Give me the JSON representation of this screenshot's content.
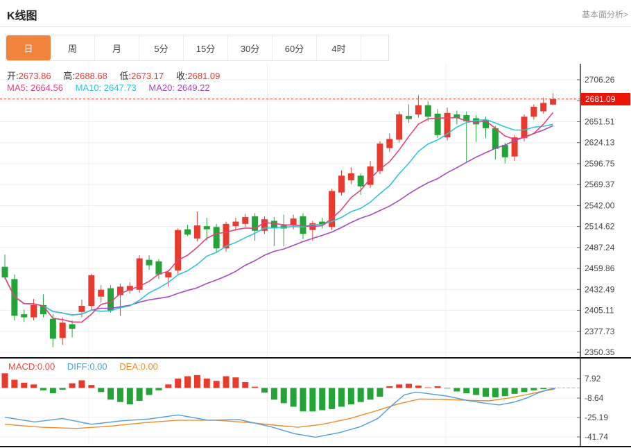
{
  "header": {
    "title": "K线图",
    "link": "基本面分析>"
  },
  "tabs": [
    {
      "label": "日",
      "active": true
    },
    {
      "label": "周",
      "active": false
    },
    {
      "label": "月",
      "active": false
    },
    {
      "label": "5分",
      "active": false
    },
    {
      "label": "15分",
      "active": false
    },
    {
      "label": "30分",
      "active": false
    },
    {
      "label": "60分",
      "active": false
    },
    {
      "label": "4时",
      "active": false
    }
  ],
  "info": {
    "open_label": "开:",
    "open": "2673.86",
    "high_label": "高:",
    "high": "2688.68",
    "low_label": "低:",
    "low": "2673.17",
    "close_label": "收:",
    "close": "2681.09"
  },
  "ma": {
    "ma5_label": "MA5:",
    "ma5": "2664.56",
    "ma10_label": "MA10:",
    "ma10": "2647.73",
    "ma20_label": "MA20:",
    "ma20": "2649.22"
  },
  "macd_info": {
    "macd_label": "MACD:",
    "macd": "0.00",
    "diff_label": "DIFF:",
    "diff": "0.00",
    "dea_label": "DEA:",
    "dea": "0.00"
  },
  "current_price": "2681.09",
  "colors": {
    "up": "#e83b2d",
    "down": "#23a338",
    "ma5": "#e8417c",
    "ma10": "#2fc3dc",
    "ma20": "#a44bbe",
    "diff": "#4f9be0",
    "dea": "#ef8b2a",
    "badge": "#ec1407",
    "dashed_price": "#e63c30",
    "dashed_zero": "#8ac4ee",
    "grid": "#ececec",
    "axis": "#444",
    "tab_active": "#f0843c"
  },
  "chart_data": [
    {
      "type": "candlestick",
      "title": "K线图 daily candles with MA5/MA10/MA20 overlays",
      "legend": [
        "MA5",
        "MA10",
        "MA20"
      ],
      "ma_periods": [
        5,
        10,
        20
      ],
      "current_price": 2681.09,
      "y_ticks": [
        2706.26,
        2678.88,
        2651.51,
        2624.13,
        2596.75,
        2569.37,
        2542.0,
        2514.62,
        2487.24,
        2459.86,
        2432.49,
        2405.11,
        2377.73,
        2350.35
      ],
      "y_tick_labels": [
        "2706.26",
        "2651.51",
        "2624.13",
        "2596.75",
        "2569.37",
        "2542.00",
        "2514.62",
        "2487.24",
        "2459.86",
        "2432.49",
        "2405.11",
        "2377.73",
        "2350.35"
      ],
      "hidden_tick": 2678.88,
      "ylim": [
        2340,
        2712
      ],
      "grid": true,
      "candles_ohlc": [
        [
          2462,
          2478,
          2446,
          2448
        ],
        [
          2446,
          2452,
          2392,
          2398
        ],
        [
          2400,
          2406,
          2390,
          2396
        ],
        [
          2396,
          2420,
          2392,
          2412
        ],
        [
          2412,
          2426,
          2396,
          2400
        ],
        [
          2394,
          2400,
          2357,
          2368
        ],
        [
          2369,
          2396,
          2360,
          2389
        ],
        [
          2387,
          2392,
          2370,
          2381
        ],
        [
          2403,
          2419,
          2396,
          2411
        ],
        [
          2411,
          2453,
          2405,
          2451
        ],
        [
          2423,
          2438,
          2416,
          2432
        ],
        [
          2434,
          2438,
          2402,
          2405
        ],
        [
          2425,
          2440,
          2398,
          2436
        ],
        [
          2431,
          2442,
          2427,
          2437
        ],
        [
          2432,
          2477,
          2428,
          2473
        ],
        [
          2471,
          2477,
          2458,
          2464
        ],
        [
          2469,
          2472,
          2446,
          2452
        ],
        [
          2448,
          2458,
          2436,
          2455
        ],
        [
          2457,
          2512,
          2452,
          2510
        ],
        [
          2511,
          2517,
          2502,
          2504
        ],
        [
          2499,
          2534,
          2495,
          2516
        ],
        [
          2515,
          2526,
          2496,
          2511
        ],
        [
          2514,
          2518,
          2480,
          2486
        ],
        [
          2486,
          2521,
          2482,
          2518
        ],
        [
          2515,
          2526,
          2509,
          2521
        ],
        [
          2518,
          2531,
          2514,
          2527
        ],
        [
          2528,
          2532,
          2496,
          2509
        ],
        [
          2509,
          2528,
          2505,
          2524
        ],
        [
          2522,
          2527,
          2489,
          2512
        ],
        [
          2516,
          2530,
          2489,
          2512
        ],
        [
          2516,
          2530,
          2511,
          2525
        ],
        [
          2528,
          2532,
          2498,
          2505
        ],
        [
          2510,
          2522,
          2496,
          2519
        ],
        [
          2521,
          2526,
          2512,
          2517
        ],
        [
          2514,
          2564,
          2510,
          2561
        ],
        [
          2559,
          2588,
          2555,
          2581
        ],
        [
          2575,
          2592,
          2570,
          2584
        ],
        [
          2581,
          2584,
          2556,
          2567
        ],
        [
          2569,
          2600,
          2565,
          2593
        ],
        [
          2587,
          2626,
          2583,
          2623
        ],
        [
          2617,
          2636,
          2612,
          2629
        ],
        [
          2628,
          2665,
          2624,
          2661
        ],
        [
          2659,
          2674,
          2650,
          2655
        ],
        [
          2661,
          2686,
          2657,
          2673
        ],
        [
          2673,
          2678,
          2652,
          2658
        ],
        [
          2662,
          2668,
          2630,
          2634
        ],
        [
          2631,
          2670,
          2627,
          2663
        ],
        [
          2661,
          2666,
          2648,
          2656
        ],
        [
          2660,
          2665,
          2599,
          2652
        ],
        [
          2656,
          2660,
          2625,
          2648
        ],
        [
          2654,
          2658,
          2630,
          2643
        ],
        [
          2643,
          2646,
          2602,
          2616
        ],
        [
          2621,
          2624,
          2597,
          2605
        ],
        [
          2606,
          2634,
          2600,
          2631
        ],
        [
          2630,
          2661,
          2626,
          2658
        ],
        [
          2658,
          2674,
          2654,
          2671
        ],
        [
          2665,
          2683,
          2662,
          2676
        ],
        [
          2673.86,
          2688.68,
          2673.17,
          2681.09
        ]
      ]
    },
    {
      "type": "bar",
      "title": "MACD histogram with DIFF / DEA lines",
      "series": [
        {
          "name": "MACD",
          "values": [
            12.5,
            7,
            4.5,
            3,
            -2,
            -4.5,
            -1.5,
            4,
            6.5,
            2.5,
            -3.5,
            -10,
            -12,
            -14,
            -11,
            -6,
            -2,
            3,
            8,
            10,
            11,
            8,
            6,
            10,
            9,
            5,
            1,
            -4,
            -10,
            -13,
            -16,
            -20,
            -20,
            -19,
            -18,
            -16,
            -14,
            -12,
            -10,
            -7.5,
            1.5,
            3,
            3.5,
            2,
            0.5,
            1.5,
            -0.5,
            -3,
            -4.5,
            -6,
            -7.5,
            -8,
            -7,
            -5,
            -3.5,
            -2,
            -1,
            0
          ]
        },
        {
          "name": "DIFF",
          "values": [
            [
              7,
              -25
            ],
            [
              50,
              -29
            ],
            [
              90,
              -26
            ],
            [
              132,
              -31
            ],
            [
              175,
              -28
            ],
            [
              215,
              -26.5
            ],
            [
              257,
              -23
            ],
            [
              300,
              -27.5
            ],
            [
              345,
              -27
            ],
            [
              390,
              -33
            ],
            [
              425,
              -39
            ],
            [
              455,
              -42
            ],
            [
              490,
              -38
            ],
            [
              520,
              -33
            ],
            [
              545,
              -26
            ],
            [
              565,
              -15
            ],
            [
              583,
              -6
            ],
            [
              600,
              -3.5
            ],
            [
              620,
              -5
            ],
            [
              645,
              -7
            ],
            [
              673,
              -10.5
            ],
            [
              700,
              -13
            ],
            [
              720,
              -14.5
            ],
            [
              742,
              -12
            ],
            [
              760,
              -8.5
            ],
            [
              775,
              -4.5
            ],
            [
              790,
              -1.5
            ],
            [
              800,
              -0.5
            ]
          ]
        },
        {
          "name": "DEA",
          "values": [
            [
              7,
              -31
            ],
            [
              60,
              -33.5
            ],
            [
              110,
              -34.5
            ],
            [
              160,
              -32.5
            ],
            [
              210,
              -29.5
            ],
            [
              257,
              -27.5
            ],
            [
              310,
              -27.5
            ],
            [
              360,
              -29.5
            ],
            [
              400,
              -32
            ],
            [
              430,
              -33.5
            ],
            [
              465,
              -31
            ],
            [
              505,
              -26
            ],
            [
              540,
              -20
            ],
            [
              575,
              -13.5
            ],
            [
              605,
              -9.5
            ],
            [
              640,
              -9.8
            ],
            [
              675,
              -10.5
            ],
            [
              705,
              -11
            ],
            [
              735,
              -8.5
            ],
            [
              765,
              -5
            ],
            [
              785,
              -2.5
            ],
            [
              800,
              -1
            ]
          ]
        }
      ],
      "y_ticks": [
        7.92,
        -8.64,
        -25.19,
        -41.74
      ],
      "y_tick_labels": [
        "7.92",
        "-8.64",
        "-25.19",
        "-41.74"
      ],
      "ylim": [
        -48,
        14
      ],
      "zero_line": 0,
      "grid": true
    }
  ]
}
